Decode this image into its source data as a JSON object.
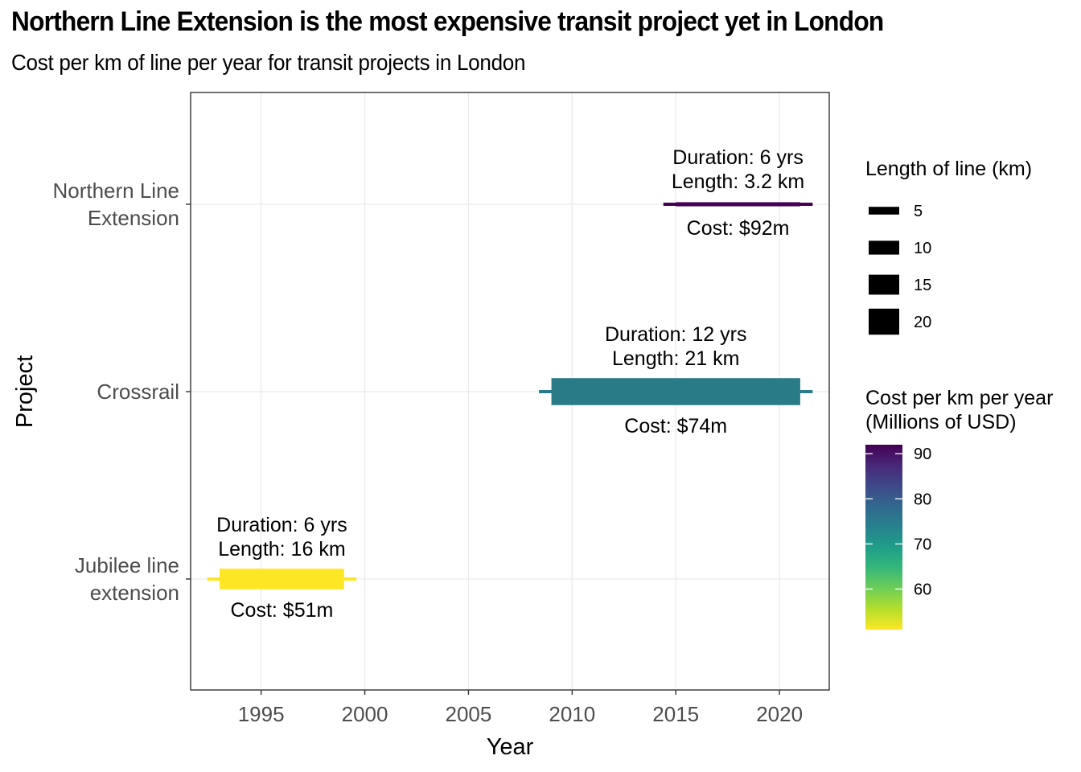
{
  "title": "Northern Line Extension is the most expensive transit project yet in London",
  "subtitle": "Cost per km of line per year for transit projects in London",
  "chart_data": {
    "type": "gantt-bar",
    "xlabel": "Year",
    "ylabel": "Project",
    "xlim": [
      1991.6,
      2022.4
    ],
    "x_ticks": [
      1995,
      2000,
      2005,
      2010,
      2015,
      2020
    ],
    "grid": true,
    "projects": [
      {
        "name_lines": [
          "Northern Line",
          "Extension"
        ],
        "start": 2015,
        "end": 2021,
        "duration_label": "Duration: 6 yrs",
        "length_label": "Length: 3.2 km",
        "cost_label": "Cost: $92m",
        "length_km": 3.2,
        "cost_per_km_year": 92,
        "color": "#440154"
      },
      {
        "name_lines": [
          "Crossrail"
        ],
        "start": 2009,
        "end": 2021,
        "duration_label": "Duration: 12 yrs",
        "length_label": "Length: 21 km",
        "cost_label": "Cost: $74m",
        "length_km": 21,
        "cost_per_km_year": 74,
        "color": "#2a7b88"
      },
      {
        "name_lines": [
          "Jubilee line",
          "extension"
        ],
        "start": 1993,
        "end": 1999,
        "duration_label": "Duration: 6 yrs",
        "length_label": "Length: 16 km",
        "cost_label": "Cost: $51m",
        "length_km": 16,
        "cost_per_km_year": 51,
        "color": "#fde725"
      }
    ],
    "legend_size": {
      "title": "Length of line (km)",
      "items": [
        {
          "label": "5",
          "value": 5
        },
        {
          "label": "10",
          "value": 10
        },
        {
          "label": "15",
          "value": 15
        },
        {
          "label": "20",
          "value": 20
        }
      ]
    },
    "legend_color": {
      "title_lines": [
        "Cost per km per year",
        "(Millions of USD)"
      ],
      "range": [
        51,
        92
      ],
      "ticks": [
        {
          "label": "60",
          "value": 60
        },
        {
          "label": "70",
          "value": 70
        },
        {
          "label": "80",
          "value": 80
        },
        {
          "label": "90",
          "value": 90
        }
      ],
      "gradient": [
        "#fde725",
        "#b5de2b",
        "#6ece58",
        "#35b779",
        "#1f9e89",
        "#26828e",
        "#31688e",
        "#3e4989",
        "#482878",
        "#440154"
      ]
    }
  }
}
